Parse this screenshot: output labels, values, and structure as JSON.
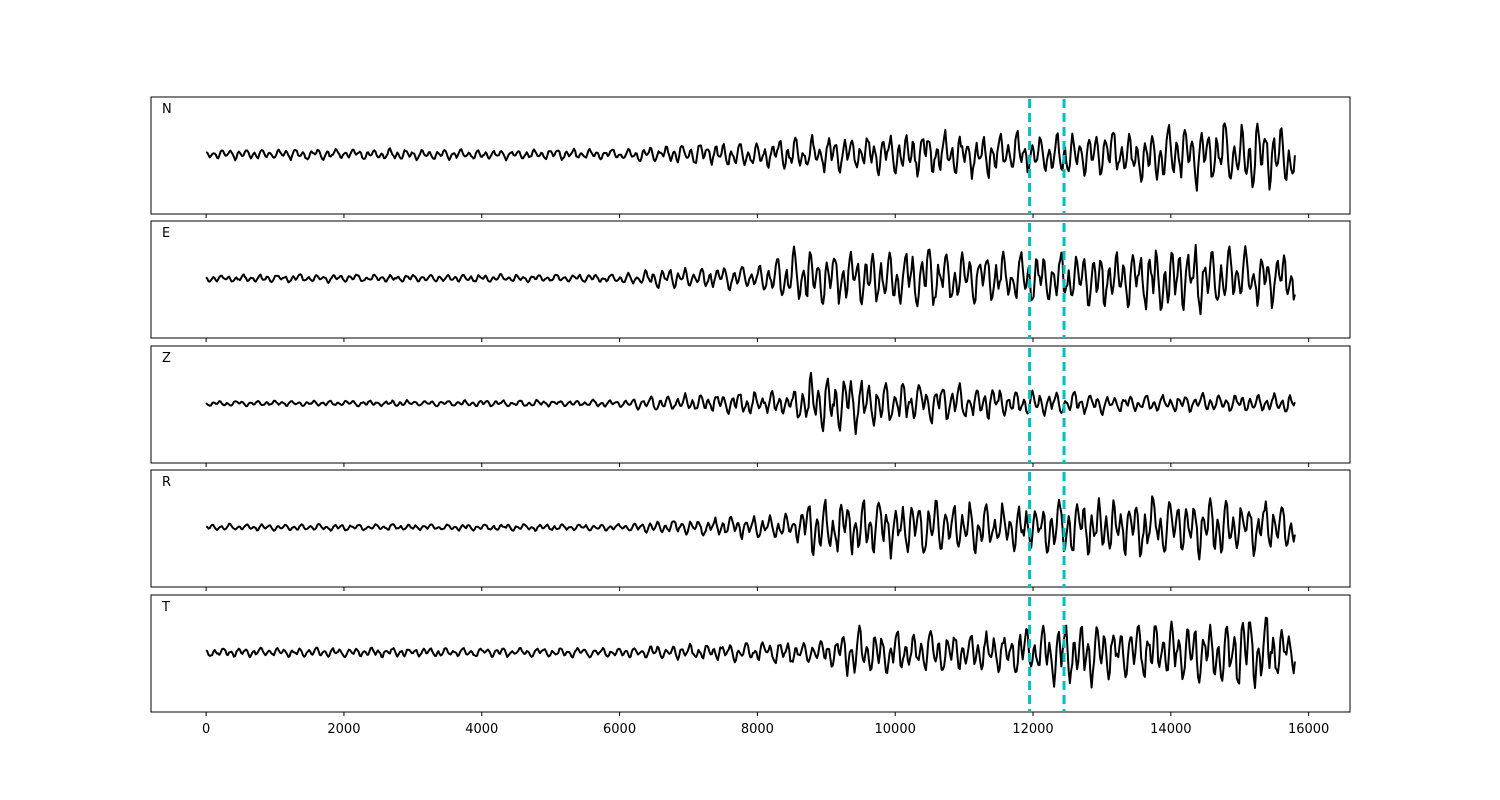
{
  "chart_data": {
    "type": "line",
    "xlim": [
      -800,
      16600
    ],
    "x_ticks": [
      0,
      2000,
      4000,
      6000,
      8000,
      10000,
      12000,
      14000,
      16000
    ],
    "x_tick_labels": [
      "0",
      "2000",
      "4000",
      "6000",
      "8000",
      "10000",
      "12000",
      "14000",
      "16000"
    ],
    "xlabel": "",
    "ylabel": "",
    "grid": false,
    "legend": "none",
    "x_start": 0,
    "x_end": 15800,
    "picks_x": [
      11950,
      12450
    ],
    "pick_color": "#00bfbf",
    "trace_color": "#000000",
    "panels": [
      {
        "label": "N",
        "seed": 11,
        "envelope": [
          [
            0,
            0.08
          ],
          [
            6000,
            0.08
          ],
          [
            6500,
            0.12
          ],
          [
            8500,
            0.25
          ],
          [
            10500,
            0.35
          ],
          [
            12000,
            0.3
          ],
          [
            13000,
            0.35
          ],
          [
            14000,
            0.45
          ],
          [
            15200,
            0.55
          ],
          [
            15800,
            0.4
          ]
        ]
      },
      {
        "label": "E",
        "seed": 23,
        "envelope": [
          [
            0,
            0.06
          ],
          [
            6000,
            0.06
          ],
          [
            6500,
            0.15
          ],
          [
            8000,
            0.2
          ],
          [
            8600,
            0.45
          ],
          [
            10500,
            0.45
          ],
          [
            12000,
            0.4
          ],
          [
            13000,
            0.45
          ],
          [
            14000,
            0.55
          ],
          [
            15800,
            0.4
          ]
        ]
      },
      {
        "label": "Z",
        "seed": 37,
        "envelope": [
          [
            0,
            0.04
          ],
          [
            6000,
            0.05
          ],
          [
            6500,
            0.12
          ],
          [
            8500,
            0.2
          ],
          [
            8800,
            0.55
          ],
          [
            9200,
            0.45
          ],
          [
            10500,
            0.3
          ],
          [
            12000,
            0.2
          ],
          [
            13500,
            0.12
          ],
          [
            15800,
            0.15
          ]
        ]
      },
      {
        "label": "R",
        "seed": 51,
        "envelope": [
          [
            0,
            0.05
          ],
          [
            6000,
            0.05
          ],
          [
            6500,
            0.1
          ],
          [
            8500,
            0.2
          ],
          [
            8800,
            0.45
          ],
          [
            10500,
            0.4
          ],
          [
            12000,
            0.35
          ],
          [
            12300,
            0.5
          ],
          [
            13000,
            0.4
          ],
          [
            14000,
            0.5
          ],
          [
            15800,
            0.35
          ]
        ]
      },
      {
        "label": "T",
        "seed": 67,
        "envelope": [
          [
            0,
            0.07
          ],
          [
            6000,
            0.07
          ],
          [
            6500,
            0.1
          ],
          [
            9000,
            0.2
          ],
          [
            9300,
            0.35
          ],
          [
            11000,
            0.3
          ],
          [
            12000,
            0.35
          ],
          [
            12300,
            0.5
          ],
          [
            14000,
            0.45
          ],
          [
            15200,
            0.6
          ],
          [
            15800,
            0.35
          ]
        ]
      }
    ]
  }
}
